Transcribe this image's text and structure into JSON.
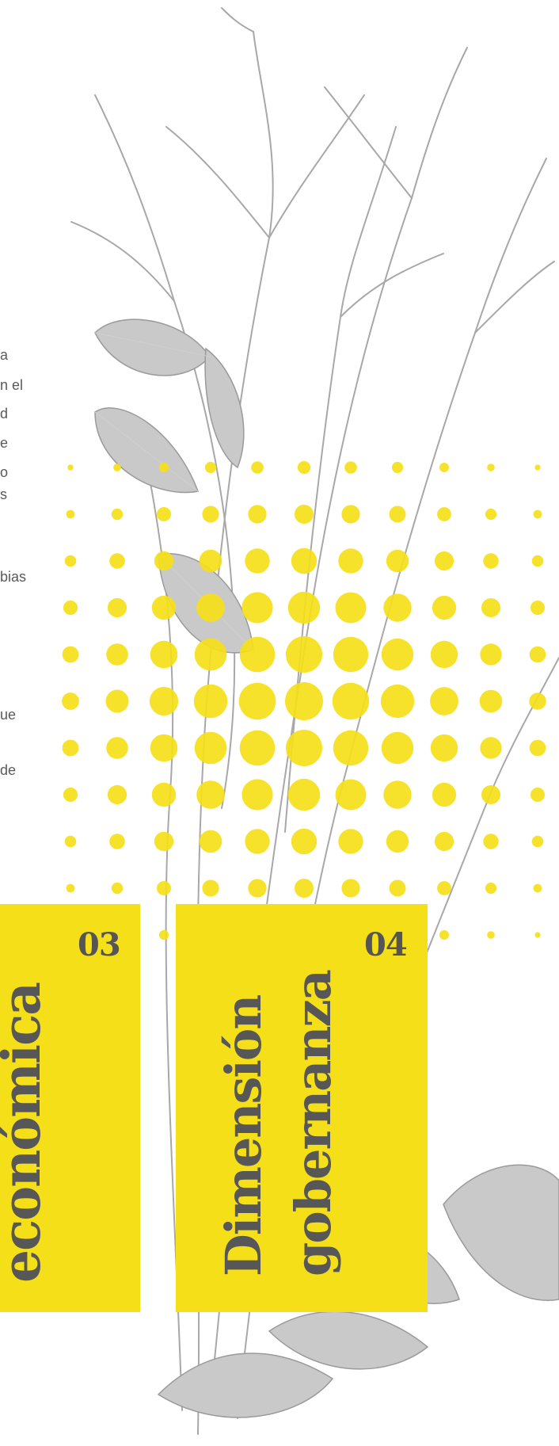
{
  "paragraph_fragments": [
    "a",
    "n el",
    "d",
    "e",
    "o",
    "s",
    "bias",
    "ue",
    "de"
  ],
  "cards": [
    {
      "number": "03",
      "title_lines": [
        "económica"
      ]
    },
    {
      "number": "04",
      "title_lines": [
        "Dimensión",
        "gobernanza"
      ]
    }
  ],
  "colors": {
    "accent": "#f5df18",
    "text": "#555555",
    "background": "#ffffff"
  },
  "icons": [
    "plant-illustration",
    "halftone-dots"
  ]
}
